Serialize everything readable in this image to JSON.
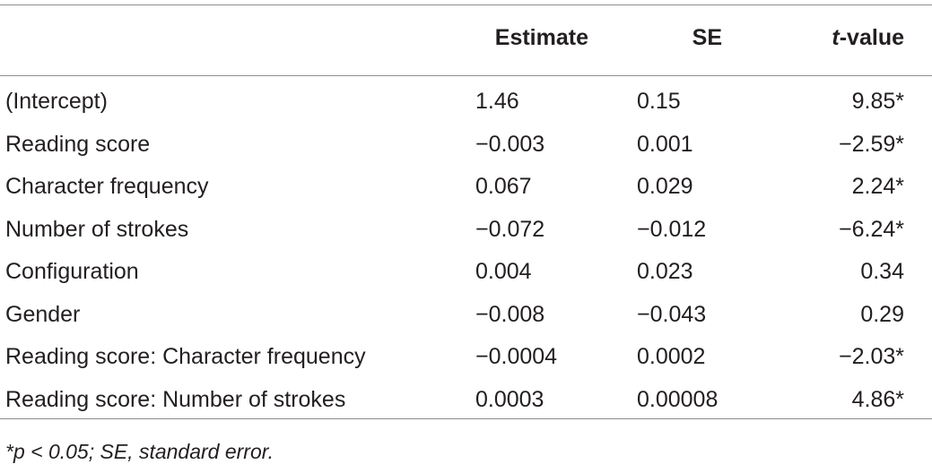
{
  "table": {
    "headers": {
      "estimate": "Estimate",
      "se": "SE",
      "t_italic": "t",
      "t_rest": "-value"
    },
    "rows": [
      {
        "label": "(Intercept)",
        "estimate": "1.46",
        "se": "0.15",
        "t": "9.85*"
      },
      {
        "label": "Reading score",
        "estimate": "−0.003",
        "se": "0.001",
        "t": "−2.59*"
      },
      {
        "label": "Character frequency",
        "estimate": "0.067",
        "se": "0.029",
        "t": "2.24*"
      },
      {
        "label": "Number of strokes",
        "estimate": "−0.072",
        "se": "−0.012",
        "t": "−6.24*"
      },
      {
        "label": "Configuration",
        "estimate": "0.004",
        "se": "0.023",
        "t": "0.34"
      },
      {
        "label": "Gender",
        "estimate": "−0.008",
        "se": "−0.043",
        "t": "0.29"
      },
      {
        "label": "Reading score: Character frequency",
        "estimate": "−0.0004",
        "se": "0.0002",
        "t": "−2.03*"
      },
      {
        "label": "Reading score: Number of strokes",
        "estimate": "0.0003",
        "se": "0.00008",
        "t": "4.86*"
      }
    ],
    "footnote": "*p < 0.05; SE, standard error."
  }
}
